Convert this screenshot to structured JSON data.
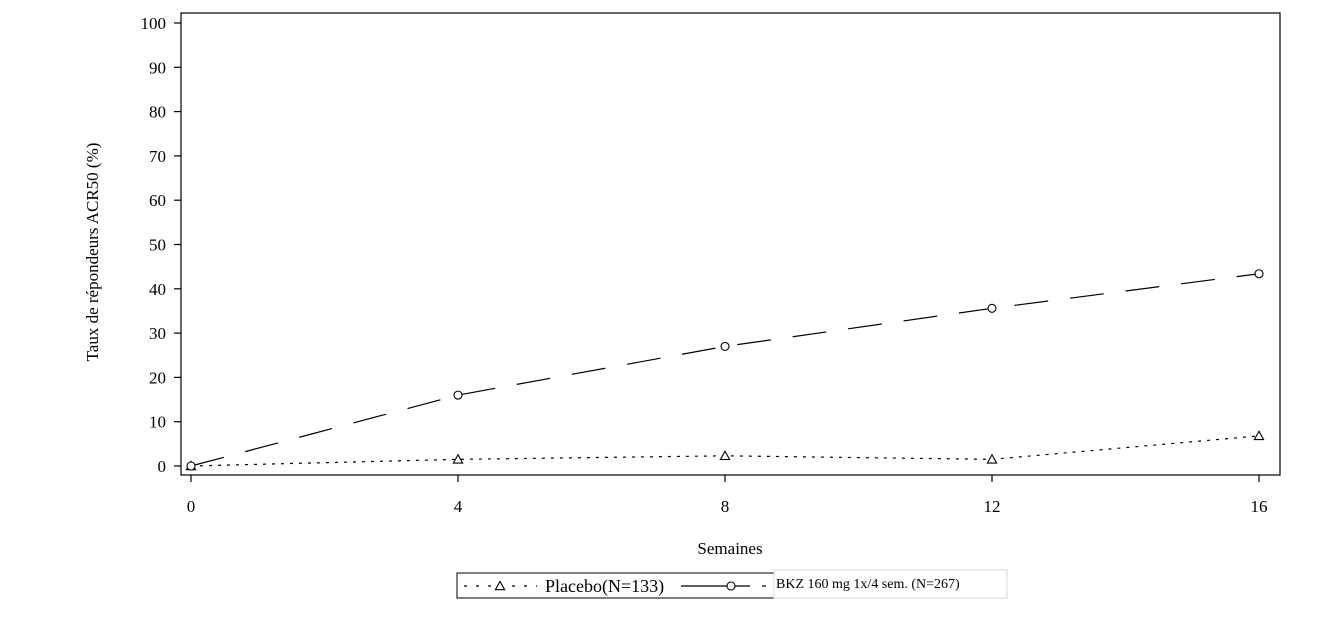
{
  "chart_data": {
    "type": "line",
    "title": "",
    "xlabel": "Semaines",
    "ylabel": "Taux de répondeurs ACR50 (%)",
    "x": [
      0,
      4,
      8,
      12,
      16
    ],
    "xticks": [
      0,
      4,
      8,
      12,
      16
    ],
    "yticks": [
      0,
      10,
      20,
      30,
      40,
      50,
      60,
      70,
      80,
      90,
      100
    ],
    "xlim": [
      0,
      16
    ],
    "ylim": [
      0,
      100
    ],
    "grid": false,
    "legend_position": "bottom",
    "series": [
      {
        "name": "Placebo(N=133)",
        "values": [
          0,
          1.5,
          2.3,
          1.5,
          6.8
        ],
        "marker": "triangle",
        "line_style": "dotted",
        "color": "#000000"
      },
      {
        "name": "BKZ 160 mg 1x/4 sem. (N=267)",
        "values": [
          0,
          16,
          27,
          35.6,
          43.4
        ],
        "marker": "circle",
        "line_style": "long-dash",
        "color": "#000000"
      }
    ]
  }
}
